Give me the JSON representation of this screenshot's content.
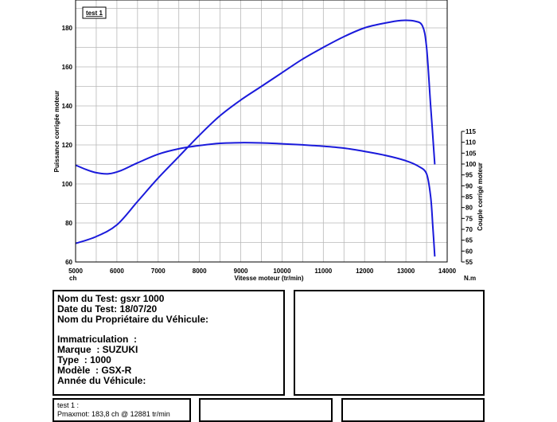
{
  "chart_data": {
    "type": "line",
    "legend": "test 1",
    "legend_placement": "top-left",
    "grid": true,
    "xlabel": "Vitesse moteur (tr/min)",
    "x_unit_left": "ch",
    "x_unit_right": "N.m",
    "ylabel_left": "Puissance corrigée moteur",
    "ylabel_right": "Couple corrigé moteur",
    "xlim": [
      5000,
      14000
    ],
    "ylim_left": [
      60,
      190
    ],
    "ylim_right": [
      55,
      115
    ],
    "x_ticks": [
      "5000",
      "6000",
      "7000",
      "8000",
      "9000",
      "10000",
      "11000",
      "12000",
      "13000",
      "14000"
    ],
    "y_ticks_left": [
      "60",
      "80",
      "100",
      "120",
      "140",
      "160",
      "180"
    ],
    "y_ticks_right": [
      "55",
      "60",
      "65",
      "70",
      "75",
      "80",
      "85",
      "90",
      "95",
      "100",
      "105",
      "110",
      "115"
    ],
    "line_color": "#1a1adb",
    "series": [
      {
        "axis": "left",
        "x": [
          5000,
          5500,
          6000,
          6500,
          7000,
          7500,
          8000,
          8500,
          9000,
          9500,
          10000,
          10500,
          11000,
          11500,
          12000,
          12500,
          12881,
          13200,
          13400,
          13500,
          13600,
          13700
        ],
        "y": [
          69.5,
          73,
          79,
          91,
          103,
          114,
          125,
          135,
          143,
          150,
          157,
          164,
          170,
          175.5,
          180,
          182.5,
          183.8,
          183.5,
          181,
          170,
          140,
          110
        ]
      },
      {
        "axis": "right",
        "x": [
          5000,
          5250,
          5500,
          5800,
          6100,
          6500,
          7000,
          7500,
          8000,
          8500,
          9000,
          9500,
          10000,
          10500,
          11000,
          11500,
          12000,
          12500,
          13000,
          13300,
          13500,
          13600,
          13650,
          13700
        ],
        "y": [
          99.5,
          97.5,
          96,
          95.5,
          97,
          100.5,
          104.5,
          107,
          108.5,
          109.5,
          109.8,
          109.7,
          109.3,
          108.8,
          108.2,
          107.3,
          105.8,
          104,
          101.5,
          99,
          95.5,
          85,
          72,
          57.5
        ]
      }
    ]
  },
  "info_box": {
    "nom_test": "Nom du Test: gsxr 1000",
    "date_test": "Date du Test: 18/07/20",
    "proprietaire": "Nom du Propriétaire du Véhicule:",
    "immatriculation": "Immatriculation  :",
    "marque": "Marque  : SUZUKI",
    "type": "Type  : 1000",
    "modele": "Modèle  : GSX-R",
    "annee": "Année du Véhicule:"
  },
  "results_box": {
    "title": "test 1 :",
    "pmaxmot": "Pmaxmot: 183,8 ch @ 12881 tr/min"
  }
}
